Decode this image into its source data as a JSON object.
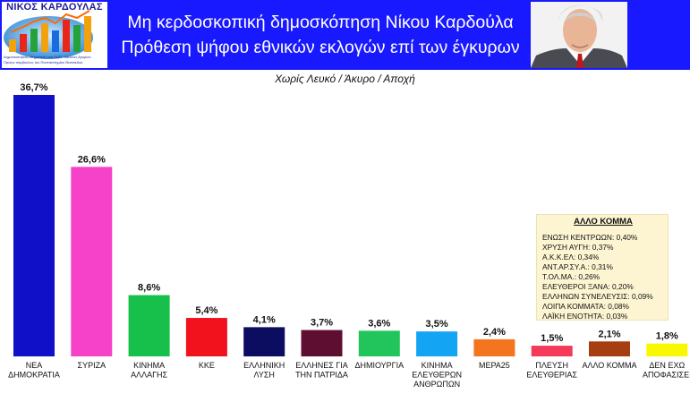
{
  "header": {
    "logo_name": "ΝΙΚΟΣ ΚΑΡΔΟΥΛΑΣ",
    "logo_fine_print": [
      "Δημοσκοπήσεις Μηχανικός του ΠΑΠ · Μελέτες Αγορών",
      "Πρώην σύμβουλος του Πανεπιστημίου Θεσσαλίας"
    ],
    "title_line1": "Μη κερδοσκοπική δημοσκόπηση Νίκου Καρδούλα",
    "title_line2": "Πρόθεση ψήφου εθνικών εκλογών επί των έγκυρων",
    "colors": {
      "banner": "#1919ff",
      "title_text": "#ffffff"
    }
  },
  "chart_data": {
    "type": "bar",
    "subtitle": "Χωρίς Λευκό / Άκυρο / Αποχή",
    "categories": [
      [
        "ΝΕΑ",
        "ΔΗΜΟΚΡΑΤΙΑ"
      ],
      [
        "ΣΥΡΙΖΑ"
      ],
      [
        "ΚΙΝΗΜΑ",
        "ΑΛΛΑΓΗΣ"
      ],
      [
        "ΚΚΕ"
      ],
      [
        "ΕΛΛΗΝΙΚΗ",
        "ΛΥΣΗ"
      ],
      [
        "ΕΛΛΗΝΕΣ ΓΙΑ",
        "ΤΗΝ ΠΑΤΡΙΔΑ"
      ],
      [
        "ΔΗΜΙΟΥΡΓΙΑ"
      ],
      [
        "ΚΙΝΗΜΑ",
        "ΕΛΕΥΘΕΡΩΝ",
        "ΑΝΘΡΩΠΩΝ"
      ],
      [
        "ΜΕΡΑ25"
      ],
      [
        "ΠΛΕΥΣΗ",
        "ΕΛΕΥΘΕΡΙΑΣ"
      ],
      [
        "ΑΛΛΟ ΚΟΜΜΑ"
      ],
      [
        "ΔΕΝ ΕΧΩ",
        "ΑΠΟΦΑΣΙΣΕΙ"
      ]
    ],
    "values": [
      36.7,
      26.6,
      8.6,
      5.4,
      4.1,
      3.7,
      3.6,
      3.5,
      2.4,
      1.5,
      2.1,
      1.8
    ],
    "value_labels": [
      "36,7%",
      "26,6%",
      "8,6%",
      "5,4%",
      "4,1%",
      "3,7%",
      "3,6%",
      "3,5%",
      "2,4%",
      "1,5%",
      "2,1%",
      "1,8%"
    ],
    "colors": [
      "#1010c8",
      "#f542c8",
      "#16c04a",
      "#f2121e",
      "#0c0c60",
      "#5e0e30",
      "#22c55c",
      "#14a4f4",
      "#f47420",
      "#f43a58",
      "#a63e12",
      "#f8f800"
    ],
    "ylim": [
      0,
      38
    ],
    "grid": false,
    "legend": "none",
    "other_parties_box": {
      "title": "ΑΛΛΟ ΚΟΜΜΑ",
      "items": [
        "ΕΝΩΣΗ ΚΕΝΤΡΩΩΝ: 0,40%",
        "ΧΡΥΣΗ ΑΥΓΗ: 0,37%",
        "Α.Κ.Κ.ΕΛ: 0,34%",
        "ΑΝΤ.ΑΡ.ΣΥ.Α.: 0,31%",
        "Τ.ΟΛ.ΜΑ.: 0,26%",
        "ΕΛΕΥΘΕΡΟΙ ΞΑΝΑ: 0,20%",
        "ΕΛΛΗΝΩΝ ΣΥΝΕΛΕΥΣΙΣ: 0,09%",
        "ΛΟΙΠΑ ΚΟΜΜΑΤΑ: 0,08%",
        "ΛΑΪΚΗ ΕΝΟΤΗΤΑ: 0,03%"
      ]
    }
  }
}
